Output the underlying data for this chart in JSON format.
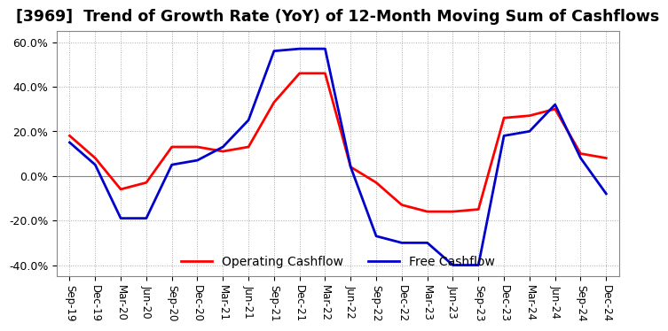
{
  "title": "[3969]  Trend of Growth Rate (YoY) of 12-Month Moving Sum of Cashflows",
  "title_fontsize": 12.5,
  "ylim": [
    -0.45,
    0.65
  ],
  "yticks": [
    -0.4,
    -0.2,
    0.0,
    0.2,
    0.4,
    0.6
  ],
  "ytick_labels": [
    "-40.0%",
    "-20.0%",
    "0.0%",
    "20.0%",
    "40.0%",
    "60.0%"
  ],
  "x_labels": [
    "Sep-19",
    "Dec-19",
    "Mar-20",
    "Jun-20",
    "Sep-20",
    "Dec-20",
    "Mar-21",
    "Jun-21",
    "Sep-21",
    "Dec-21",
    "Mar-22",
    "Jun-22",
    "Sep-22",
    "Dec-22",
    "Mar-23",
    "Jun-23",
    "Sep-23",
    "Dec-23",
    "Mar-24",
    "Jun-24",
    "Sep-24",
    "Dec-24"
  ],
  "operating_cashflow": [
    0.18,
    0.08,
    -0.06,
    -0.03,
    0.13,
    0.13,
    0.11,
    0.13,
    0.33,
    0.46,
    0.46,
    0.04,
    -0.03,
    -0.13,
    -0.16,
    -0.16,
    -0.15,
    0.26,
    0.27,
    0.3,
    0.1,
    0.08
  ],
  "free_cashflow": [
    0.15,
    0.05,
    -0.19,
    -0.19,
    0.05,
    0.07,
    0.13,
    0.25,
    0.56,
    0.57,
    0.57,
    0.04,
    -0.27,
    -0.3,
    -0.3,
    -0.4,
    -0.4,
    0.18,
    0.2,
    0.32,
    0.08,
    -0.08
  ],
  "operating_color": "#ff0000",
  "free_color": "#0000cd",
  "legend_labels": [
    "Operating Cashflow",
    "Free Cashflow"
  ],
  "grid_color": "#aaaaaa",
  "background_color": "#ffffff"
}
